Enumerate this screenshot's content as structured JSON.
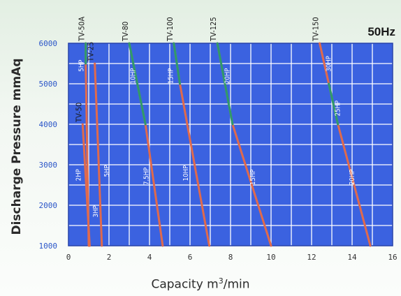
{
  "chart_data": {
    "type": "line",
    "frequency_label": "50Hz",
    "xlabel_prefix": "Capacity m",
    "xlabel_sup": "3",
    "xlabel_suffix": "/min",
    "ylabel": "Discharge Pressure mmAq",
    "xlim": [
      0,
      16
    ],
    "ylim": [
      1000,
      6000
    ],
    "x_ticks": [
      0,
      2,
      4,
      6,
      8,
      10,
      12,
      14,
      16
    ],
    "y_ticks": [
      1000,
      2000,
      3000,
      4000,
      5000,
      6000
    ],
    "grid": true,
    "colors": {
      "segment": "#e06a4c",
      "green": "#2e9a6a",
      "grid": "#ffffff",
      "panel": "#3b62e0",
      "border": "#1d3aa8"
    },
    "series": [
      {
        "name": "TV-50A",
        "points": [
          [
            0.85,
            6000
          ],
          [
            0.85,
            5500
          ],
          [
            1.0,
            1000
          ]
        ],
        "green_to": 5500,
        "hp": [
          {
            "t": "5HP",
            "x": 0.75,
            "y": 5300
          }
        ]
      },
      {
        "name": "TV-25",
        "points": [
          [
            1.3,
            5500
          ],
          [
            1.65,
            1000
          ]
        ],
        "hp": [
          {
            "t": "3HP",
            "x": 1.45,
            "y": 1700
          }
        ]
      },
      {
        "name": "TV-50",
        "points": [
          [
            0.7,
            4000
          ],
          [
            1.05,
            1000
          ]
        ],
        "hp": [
          {
            "t": "2HP",
            "x": 0.6,
            "y": 2600
          }
        ]
      },
      {
        "name": "TV-80",
        "points": [
          [
            3.0,
            6000
          ],
          [
            3.8,
            4000
          ],
          [
            4.65,
            1000
          ]
        ],
        "green_to": 4000,
        "hp": [
          {
            "t": "10HP",
            "x": 3.3,
            "y": 5000
          },
          {
            "t": "7.5HP",
            "x": 3.95,
            "y": 2500
          }
        ]
      },
      {
        "name": "TV-100",
        "points": [
          [
            5.2,
            6000
          ],
          [
            5.5,
            5000
          ],
          [
            6.95,
            1000
          ]
        ],
        "green_to": 5000,
        "hp": [
          {
            "t": "15HP",
            "x": 5.15,
            "y": 5000
          },
          {
            "t": "10HP",
            "x": 5.9,
            "y": 2600
          }
        ]
      },
      {
        "name": "TV-125",
        "points": [
          [
            7.35,
            6000
          ],
          [
            8.1,
            4000
          ],
          [
            10.0,
            1000
          ]
        ],
        "green_to": 4000,
        "hp": [
          {
            "t": "20HP",
            "x": 7.95,
            "y": 5000
          },
          {
            "t": "15HP",
            "x": 9.2,
            "y": 2500
          }
        ]
      },
      {
        "name": "TV-150",
        "points": [
          [
            12.4,
            6000
          ],
          [
            13.3,
            4000
          ],
          [
            14.9,
            1000
          ]
        ],
        "green_segment": [
          5000,
          4000
        ],
        "hp": [
          {
            "t": "30HP",
            "x": 12.95,
            "y": 5300
          },
          {
            "t": "25HP",
            "x": 13.4,
            "y": 4200
          },
          {
            "t": "20HP",
            "x": 14.1,
            "y": 2500
          }
        ]
      }
    ],
    "fivehp_label": {
      "t": "5HP",
      "x": 2.0,
      "y": 2700
    },
    "below_labels": [
      "TV-50A",
      "TV-25",
      "TV-50"
    ]
  }
}
